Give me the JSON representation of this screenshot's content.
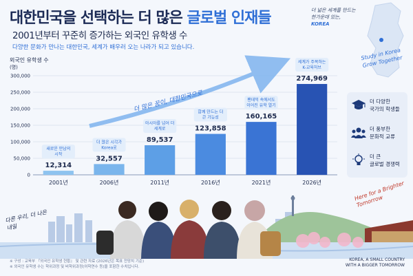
{
  "header": {
    "title_part1": "대한민국을 선택하는 더 많은",
    "title_highlight": "글로벌 인재들",
    "subtitle": "2001년부터 꾸준히 증가하는 외국인 유학생 수",
    "description": "다양한 문화가 만나는 대한민국, 세계가 배우러 오는 나라가 되고 있습니다."
  },
  "top_note": {
    "line1": "더 넓은 세계를 만드는",
    "line2": "한가운데 있는,",
    "emphasis": "KOREA"
  },
  "right_script": "Study in Korea Grow Together",
  "arrow_caption": "더 많은 꿈이, 대한민국으로",
  "brighter_note": "Here for a Brighter Tomorrow",
  "left_slogan": "다른 우리, 더 나은 내일",
  "chart_data": {
    "type": "bar",
    "title": "외국인 유학생 수",
    "ylabel": "(명)",
    "categories": [
      "2001년",
      "2006년",
      "2011년",
      "2016년",
      "2021년",
      "2026년"
    ],
    "values": [
      12314,
      32557,
      89537,
      123858,
      160165,
      274969
    ],
    "value_labels": [
      "12,314",
      "32,557",
      "89,537",
      "123,858",
      "160,165",
      "274,969"
    ],
    "bar_notes": [
      "새로운 만남의 시작",
      "더 많은 시각가 Korea로",
      "아시아를 넘어 더 세계로",
      "함께 만드는 더 큰 가능성",
      "팬데믹 속에서도 이어진 유학 열기",
      "세계가 주목하는 K-교육허브"
    ],
    "yticks": [
      0,
      50000,
      100000,
      150000,
      200000,
      250000,
      300000
    ],
    "ytick_labels": [
      "0",
      "50,000",
      "100,000",
      "150,000",
      "200,000",
      "250,000",
      "300,000"
    ],
    "ylim": [
      0,
      300000
    ],
    "grid": true,
    "colors": {
      "bars": [
        "#8ec3ef",
        "#7ab5ec",
        "#5d9fe6",
        "#4b8be0",
        "#3a74d4",
        "#2853b3"
      ],
      "notes_bg": "#e3eefb",
      "note_text": "#2f6fd6",
      "arrow": "#7fb3ee"
    }
  },
  "side_panel": {
    "items": [
      {
        "icon": "graduation-cap-icon",
        "line1": "더 다양한",
        "line2": "국가의 학생들"
      },
      {
        "icon": "people-icon",
        "line1": "더 풍부한",
        "line2": "문화적 교류"
      },
      {
        "icon": "lightbulb-icon",
        "line1": "더 큰",
        "line2": "글로벌 경쟁력"
      }
    ]
  },
  "footer": {
    "line1": "※ 구성 : 교육부 『외국인 유학생 현황』 및 관련 자료 (2026년은 목표 전망치 기준)",
    "line2": "※ 외국인 유학생 수는 학위과정 및 비학위과정(어학연수 등)을 포함한 수치입니다."
  },
  "footer_right": {
    "line1": "KOREA, A SMALL COUNTRY",
    "line2": "WITH A BIGGER TOMORROW"
  }
}
